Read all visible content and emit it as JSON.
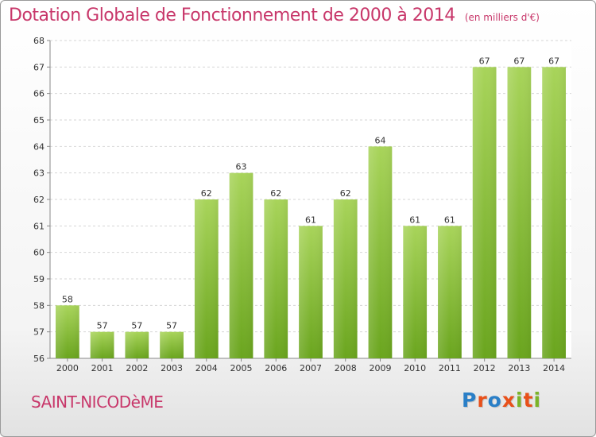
{
  "header": {
    "title": "Dotation Globale de Fonctionnement de 2000 à 2014",
    "subtitle": "(en milliers d'€)"
  },
  "footer": {
    "commune": "SAINT-NICODèME",
    "logo_text": "Proxiti",
    "logo_colors": [
      "#2a7fc7",
      "#e8501a",
      "#2a7fc7",
      "#e8501a",
      "#7bb328",
      "#e8501a",
      "#7bb328"
    ]
  },
  "chart_data": {
    "type": "bar",
    "title": "Dotation Globale de Fonctionnement de 2000 à 2014",
    "subtitle": "(en milliers d'€)",
    "xlabel": "",
    "ylabel": "",
    "categories": [
      "2000",
      "2001",
      "2002",
      "2003",
      "2004",
      "2005",
      "2006",
      "2007",
      "2008",
      "2009",
      "2010",
      "2011",
      "2012",
      "2013",
      "2014"
    ],
    "values": [
      58,
      57,
      57,
      57,
      62,
      63,
      62,
      61,
      62,
      64,
      61,
      61,
      67,
      67,
      67
    ],
    "ylim": [
      56,
      68
    ],
    "yticks": [
      56,
      57,
      58,
      59,
      60,
      61,
      62,
      63,
      64,
      65,
      66,
      67,
      68
    ],
    "grid": true,
    "bar_color_light": "#a8d45a",
    "bar_color_dark": "#6aa51e",
    "title_color": "#c8376a"
  }
}
